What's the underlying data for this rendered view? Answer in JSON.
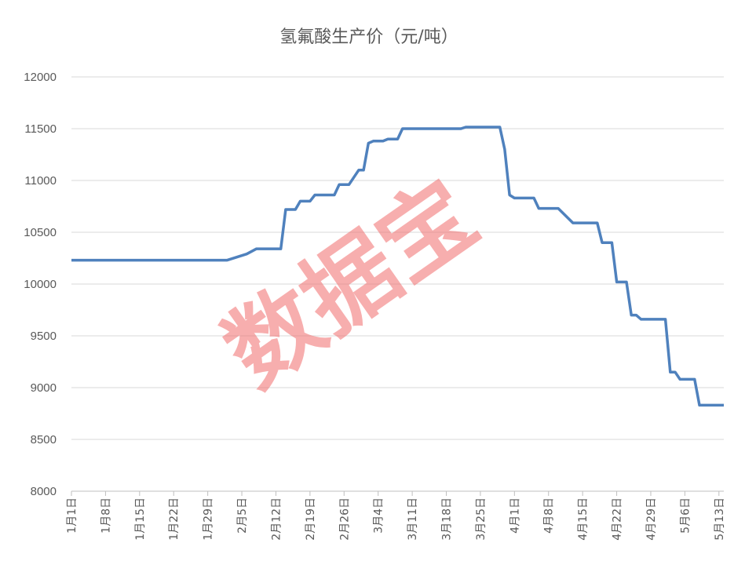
{
  "chart_data": {
    "type": "line",
    "title": "氢氟酸生产价（元/吨）",
    "watermark": "数据宝",
    "ylim": [
      8000,
      12000
    ],
    "y_ticks": [
      8000,
      8500,
      9000,
      9500,
      10000,
      10500,
      11000,
      11500,
      12000
    ],
    "x_tick_labels": [
      "1月1日",
      "1月8日",
      "1月15日",
      "1月22日",
      "1月29日",
      "2月5日",
      "2月12日",
      "2月19日",
      "2月26日",
      "3月4日",
      "3月11日",
      "3月18日",
      "3月25日",
      "4月1日",
      "4月8日",
      "4月15日",
      "4月22日",
      "4月29日",
      "5月6日",
      "5月13日"
    ],
    "grid": true,
    "legend": "none",
    "colors": {
      "line": "#4f81bd",
      "grid": "#d9d9d9",
      "text": "#595959",
      "watermark": "#f26d6d"
    },
    "series": [
      {
        "values": [
          [
            0,
            10230
          ],
          [
            32,
            10230
          ],
          [
            36,
            10290
          ],
          [
            38,
            10340
          ],
          [
            43,
            10340
          ],
          [
            44,
            10720
          ],
          [
            46,
            10720
          ],
          [
            47,
            10800
          ],
          [
            49,
            10800
          ],
          [
            50,
            10860
          ],
          [
            54,
            10860
          ],
          [
            55,
            10960
          ],
          [
            57,
            10960
          ],
          [
            59,
            11100
          ],
          [
            60,
            11100
          ],
          [
            61,
            11360
          ],
          [
            62,
            11380
          ],
          [
            64,
            11380
          ],
          [
            65,
            11400
          ],
          [
            67,
            11400
          ],
          [
            68,
            11500
          ],
          [
            80,
            11500
          ],
          [
            81,
            11515
          ],
          [
            88,
            11515
          ],
          [
            89,
            11300
          ],
          [
            90,
            10860
          ],
          [
            91,
            10830
          ],
          [
            95,
            10830
          ],
          [
            96,
            10730
          ],
          [
            100,
            10730
          ],
          [
            103,
            10590
          ],
          [
            108,
            10590
          ],
          [
            109,
            10400
          ],
          [
            111,
            10400
          ],
          [
            112,
            10020
          ],
          [
            114,
            10020
          ],
          [
            115,
            9700
          ],
          [
            116,
            9700
          ],
          [
            117,
            9660
          ],
          [
            122,
            9660
          ],
          [
            123,
            9150
          ],
          [
            124,
            9150
          ],
          [
            125,
            9080
          ],
          [
            128,
            9080
          ],
          [
            129,
            8830
          ],
          [
            134,
            8830
          ]
        ]
      }
    ]
  }
}
